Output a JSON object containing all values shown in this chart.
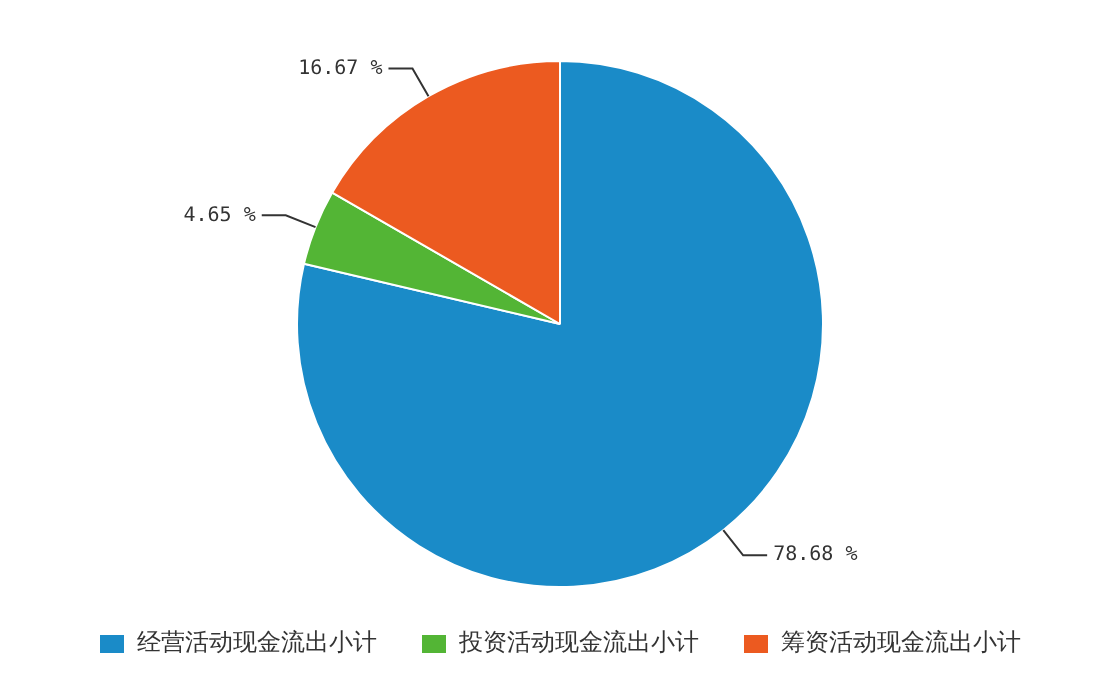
{
  "chart_data": {
    "type": "pie",
    "categories": [
      "经营活动现金流出小计",
      "投资活动现金流出小计",
      "筹资活动现金流出小计"
    ],
    "values": [
      78.68,
      4.65,
      16.67
    ],
    "colors": [
      "#1a8bc8",
      "#53b535",
      "#ec5a20"
    ],
    "value_labels": [
      "78.68 %",
      "4.65 %",
      "16.67 %"
    ],
    "legend": "bottom"
  }
}
